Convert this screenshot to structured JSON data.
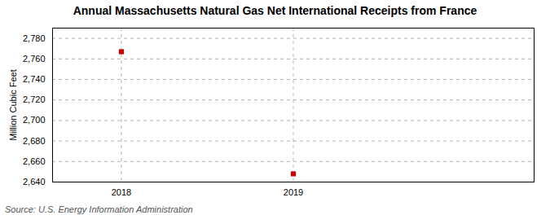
{
  "chart_data": {
    "type": "scatter",
    "title": "Annual Massachusetts Natural Gas Net International Receipts from France",
    "ylabel": "Million Cubic Feet",
    "source": "Source: U.S. Energy Information Administration",
    "x": [
      2018,
      2019
    ],
    "values": [
      2767,
      2648
    ],
    "color": "#cc0000",
    "marker": "square",
    "xlim": [
      2017.6,
      2020.4
    ],
    "ylim": [
      2640,
      2790
    ],
    "xticks": [
      2018,
      2019
    ],
    "yticks": [
      {
        "value": 2640,
        "label": "2,640"
      },
      {
        "value": 2660,
        "label": "2,660"
      },
      {
        "value": 2680,
        "label": "2,680"
      },
      {
        "value": 2700,
        "label": "2,700"
      },
      {
        "value": 2720,
        "label": "2,720"
      },
      {
        "value": 2740,
        "label": "2,740"
      },
      {
        "value": 2760,
        "label": "2,760"
      },
      {
        "value": 2780,
        "label": "2,780"
      }
    ],
    "grid": true
  }
}
